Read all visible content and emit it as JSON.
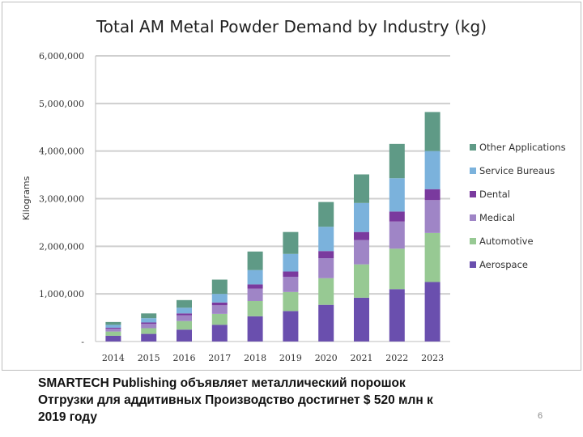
{
  "chart_data": {
    "type": "bar",
    "stacked": true,
    "title": "Total AM Metal Powder Demand by Industry (kg)",
    "xlabel": "",
    "ylabel": "Kilograms",
    "ylim": [
      0,
      6000000
    ],
    "yticks": [
      0,
      1000000,
      2000000,
      3000000,
      4000000,
      5000000,
      6000000
    ],
    "ytick_labels": [
      "-",
      "1,000,000",
      "2,000,000",
      "3,000,000",
      "4,000,000",
      "5,000,000",
      "6,000,000"
    ],
    "grid": true,
    "legend_position": "right",
    "categories": [
      "2014",
      "2015",
      "2016",
      "2017",
      "2018",
      "2019",
      "2020",
      "2021",
      "2022",
      "2023"
    ],
    "series": [
      {
        "name": "Aerospace",
        "color": "#6a4fae",
        "values": [
          120000,
          160000,
          250000,
          350000,
          530000,
          640000,
          770000,
          920000,
          1100000,
          1250000
        ]
      },
      {
        "name": "Automotive",
        "color": "#97c993",
        "values": [
          90000,
          120000,
          180000,
          230000,
          320000,
          400000,
          560000,
          700000,
          850000,
          1030000
        ]
      },
      {
        "name": "Medical",
        "color": "#9f85c6",
        "values": [
          60000,
          90000,
          120000,
          180000,
          260000,
          320000,
          420000,
          510000,
          570000,
          690000
        ]
      },
      {
        "name": "Dental",
        "color": "#7a3a9e",
        "values": [
          20000,
          30000,
          40000,
          60000,
          90000,
          110000,
          150000,
          170000,
          210000,
          230000
        ]
      },
      {
        "name": "Service Bureaus",
        "color": "#7bb2dc",
        "values": [
          60000,
          90000,
          120000,
          180000,
          300000,
          370000,
          510000,
          610000,
          700000,
          800000
        ]
      },
      {
        "name": "Other Applications",
        "color": "#5f9a86",
        "values": [
          60000,
          100000,
          160000,
          300000,
          390000,
          460000,
          520000,
          600000,
          720000,
          820000
        ]
      }
    ]
  },
  "caption": {
    "line1": "SMARTECH Publishing объявляет металлический порошок",
    "line2": "Отгрузки для аддитивных Производство достигнет $ 520 млн к",
    "line3": "2019 году"
  },
  "page_number": "6"
}
